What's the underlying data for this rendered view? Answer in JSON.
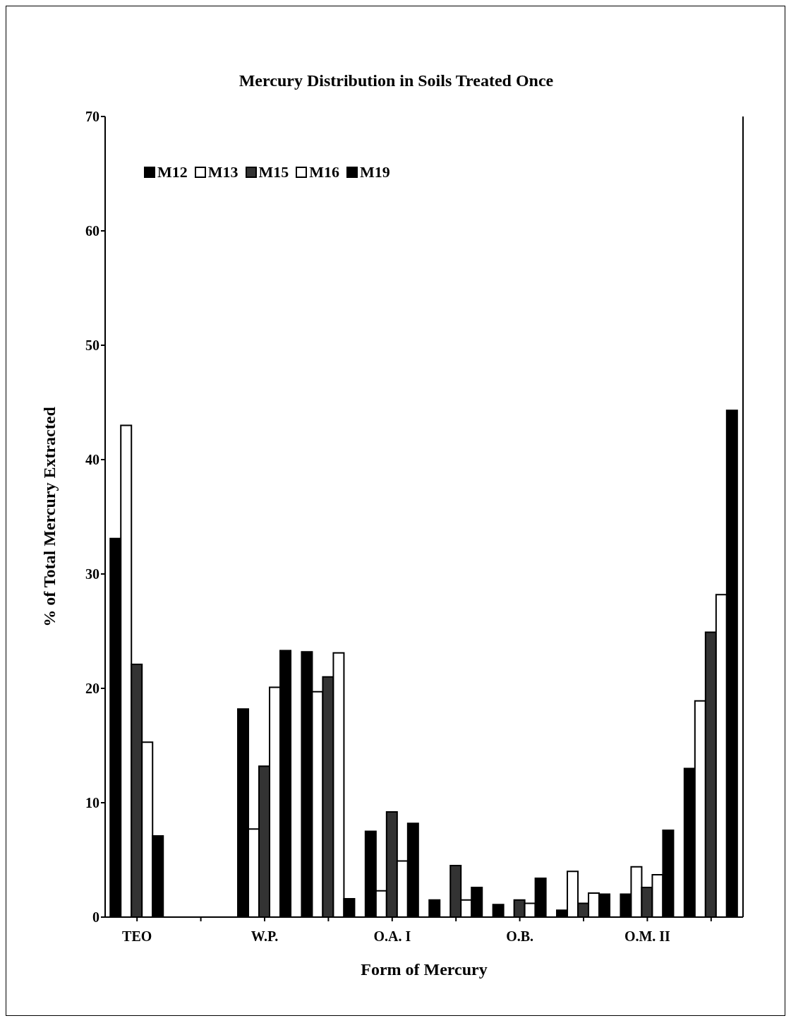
{
  "chart_data": {
    "type": "bar",
    "title": "Mercury Distribution in Soils Treated Once",
    "xlabel": "Form of Mercury",
    "ylabel": "% of Total Mercury Extracted",
    "categories": [
      "TEO",
      null,
      "W.P.",
      null,
      "O.A. I",
      null,
      "O.B.",
      null,
      "O.M. II",
      null
    ],
    "series": [
      {
        "name": "M12",
        "color": "#000000",
        "values": [
          33.1,
          0,
          18.2,
          23.2,
          7.5,
          1.5,
          1.1,
          0.6,
          2.0,
          13.0
        ]
      },
      {
        "name": "M13",
        "color": "#ffffff",
        "values": [
          43.0,
          0,
          7.7,
          19.7,
          2.3,
          0,
          0,
          4.0,
          4.4,
          18.9
        ]
      },
      {
        "name": "M15",
        "color": "#333333",
        "values": [
          22.1,
          0,
          13.2,
          21.0,
          9.2,
          4.5,
          1.5,
          1.2,
          2.6,
          24.9
        ]
      },
      {
        "name": "M16",
        "color": "#ffffff",
        "values": [
          15.3,
          0,
          20.1,
          23.1,
          4.9,
          1.5,
          1.2,
          2.1,
          3.7,
          28.2
        ]
      },
      {
        "name": "M19",
        "color": "#000000",
        "values": [
          7.1,
          0,
          23.3,
          1.6,
          8.2,
          2.6,
          3.4,
          2.0,
          7.6,
          44.3
        ]
      }
    ],
    "ylim": [
      0,
      70
    ],
    "yticks": [
      0,
      10,
      20,
      30,
      40,
      50,
      60,
      70
    ],
    "grid": false,
    "legend": "top left"
  }
}
